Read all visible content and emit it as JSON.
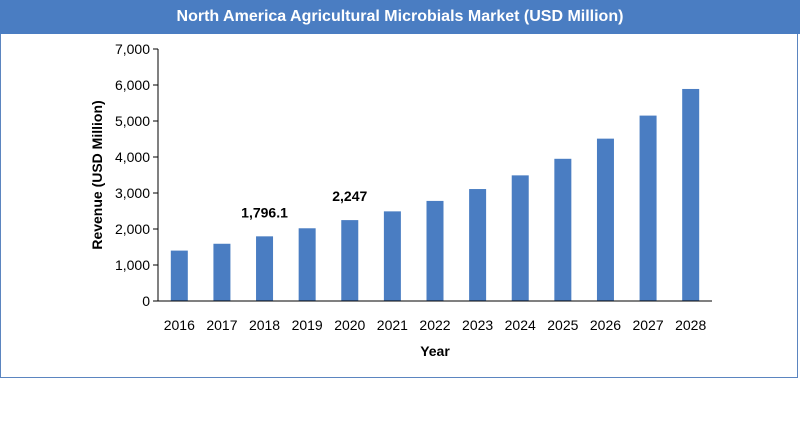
{
  "title": "North America Agricultural Microbials Market (USD Million)",
  "colors": {
    "bar": "#4a7dc2",
    "title_bg": "#4a7dc2",
    "border": "#5b85c0"
  },
  "chart_data": {
    "type": "bar",
    "title": "North America Agricultural Microbials Market (USD Million)",
    "xlabel": "Year",
    "ylabel": "Revenue (USD Million)",
    "ylim": [
      0,
      7000
    ],
    "yticks": [
      "0",
      "1,000",
      "2,000",
      "3,000",
      "4,000",
      "5,000",
      "6,000",
      "7,000"
    ],
    "grid": false,
    "categories": [
      "2016",
      "2017",
      "2018",
      "2019",
      "2020",
      "2021",
      "2022",
      "2023",
      "2024",
      "2025",
      "2026",
      "2027",
      "2028"
    ],
    "values": [
      1400,
      1590,
      1796.1,
      2020,
      2247,
      2490,
      2780,
      3110,
      3490,
      3950,
      4510,
      5150,
      5890
    ],
    "data_labels": [
      {
        "category": "2018",
        "text": "1,796.1"
      },
      {
        "category": "2020",
        "text": "2,247"
      }
    ]
  }
}
